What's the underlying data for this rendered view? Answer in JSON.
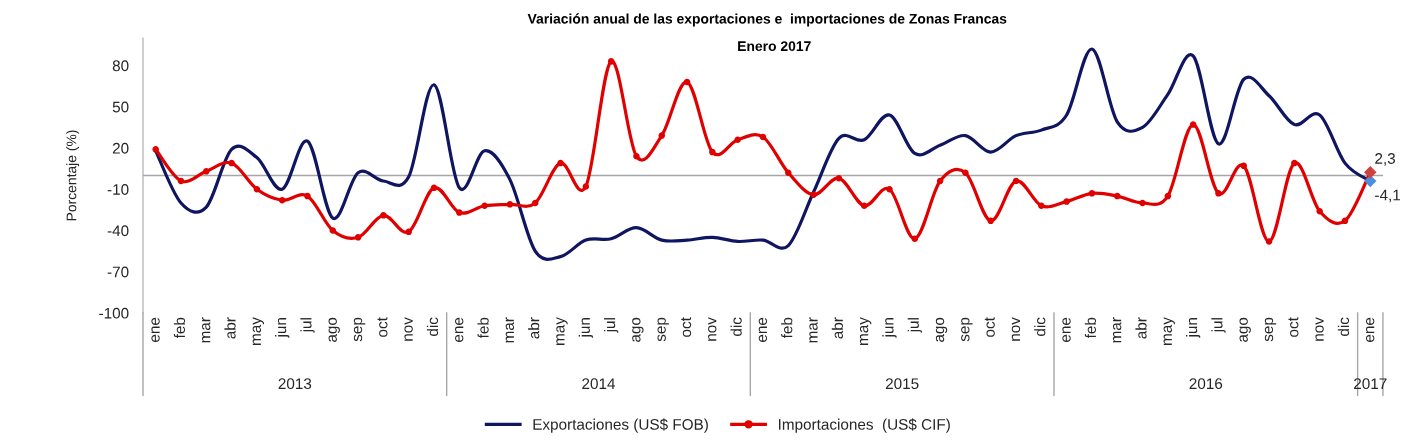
{
  "chart_data": {
    "type": "line",
    "title": "Variación anual de las exportaciones e  importaciones de Zonas Francas",
    "subtitle": "Enero 2017",
    "ylabel": "Porcentaje (%)",
    "categories": [
      "ene",
      "feb",
      "mar",
      "abr",
      "may",
      "jun",
      "jul",
      "ago",
      "sep",
      "oct",
      "nov",
      "dic",
      "ene",
      "feb",
      "mar",
      "abr",
      "may",
      "jun",
      "jul",
      "ago",
      "sep",
      "oct",
      "nov",
      "dic",
      "ene",
      "feb",
      "mar",
      "abr",
      "may",
      "jun",
      "jul",
      "ago",
      "sep",
      "oct",
      "nov",
      "dic",
      "ene",
      "feb",
      "mar",
      "abr",
      "may",
      "jun",
      "jul",
      "ago",
      "sep",
      "oct",
      "nov",
      "dic",
      "ene"
    ],
    "series": [
      {
        "name": "Exportaciones (US$ FOB)",
        "color": "#0f1560",
        "marker": "none",
        "values": [
          18,
          -20,
          -23,
          19,
          13,
          -10,
          25,
          -31,
          2,
          -4,
          -1,
          66,
          -9,
          18,
          -3,
          -55,
          -59,
          -47,
          -46,
          -38,
          -47,
          -47,
          -45,
          -48,
          -47,
          -51,
          -12,
          27,
          26,
          44,
          16,
          22,
          29,
          17,
          29,
          33,
          44,
          92,
          39,
          35,
          59,
          87,
          23,
          70,
          58,
          37,
          44,
          9,
          -4.1
        ]
      },
      {
        "name": "Importaciones  (US$ CIF)",
        "color": "#e00000",
        "marker": "circle",
        "values": [
          19,
          -4,
          3,
          9,
          -10,
          -18,
          -15,
          -40,
          -45,
          -29,
          -41,
          -9,
          -27,
          -22,
          -21,
          -20,
          9,
          -8,
          83,
          14,
          29,
          68,
          17,
          26,
          28,
          2,
          -14,
          -2,
          -22,
          -10,
          -46,
          -4,
          2,
          -33,
          -4,
          -22,
          -19,
          -13,
          -15,
          -20,
          -15,
          37,
          -13,
          7,
          -48,
          9,
          -26,
          -33,
          2.3
        ]
      },
      {
        "type": "scatter",
        "color": "#4a8fdc",
        "marker": "diamond",
        "values": [
          null,
          null,
          null,
          null,
          null,
          null,
          null,
          null,
          null,
          null,
          null,
          null,
          null,
          null,
          null,
          null,
          null,
          null,
          null,
          null,
          null,
          null,
          null,
          null,
          null,
          null,
          null,
          null,
          null,
          null,
          null,
          null,
          null,
          null,
          null,
          null,
          null,
          null,
          null,
          null,
          null,
          null,
          null,
          null,
          null,
          null,
          null,
          null,
          -4.1
        ],
        "value_labels": [
          null,
          null,
          null,
          null,
          null,
          null,
          null,
          null,
          null,
          null,
          null,
          null,
          null,
          null,
          null,
          null,
          null,
          null,
          null,
          null,
          null,
          null,
          null,
          null,
          null,
          null,
          null,
          null,
          null,
          null,
          null,
          null,
          null,
          null,
          null,
          null,
          null,
          null,
          null,
          null,
          null,
          null,
          null,
          null,
          null,
          null,
          null,
          null,
          "-4,1"
        ]
      },
      {
        "type": "scatter",
        "color": "#d0403f",
        "marker": "diamond",
        "values": [
          null,
          null,
          null,
          null,
          null,
          null,
          null,
          null,
          null,
          null,
          null,
          null,
          null,
          null,
          null,
          null,
          null,
          null,
          null,
          null,
          null,
          null,
          null,
          null,
          null,
          null,
          null,
          null,
          null,
          null,
          null,
          null,
          null,
          null,
          null,
          null,
          null,
          null,
          null,
          null,
          null,
          null,
          null,
          null,
          null,
          null,
          null,
          null,
          2.3
        ],
        "value_labels": [
          null,
          null,
          null,
          null,
          null,
          null,
          null,
          null,
          null,
          null,
          null,
          null,
          null,
          null,
          null,
          null,
          null,
          null,
          null,
          null,
          null,
          null,
          null,
          null,
          null,
          null,
          null,
          null,
          null,
          null,
          null,
          null,
          null,
          null,
          null,
          null,
          null,
          null,
          null,
          null,
          null,
          null,
          null,
          null,
          null,
          null,
          null,
          null,
          "2,3"
        ]
      }
    ],
    "ylim": [
      -100,
      100
    ],
    "yticks": [
      -100,
      -70,
      -40,
      -10,
      20,
      50,
      80
    ],
    "ref_lines": [
      {
        "axis": "y",
        "value": 0,
        "color": "#a6a6a6"
      }
    ],
    "annotations": [
      "2013",
      "2014",
      "2015",
      "2016",
      "2017"
    ],
    "legend": "bottom",
    "grid": false
  }
}
